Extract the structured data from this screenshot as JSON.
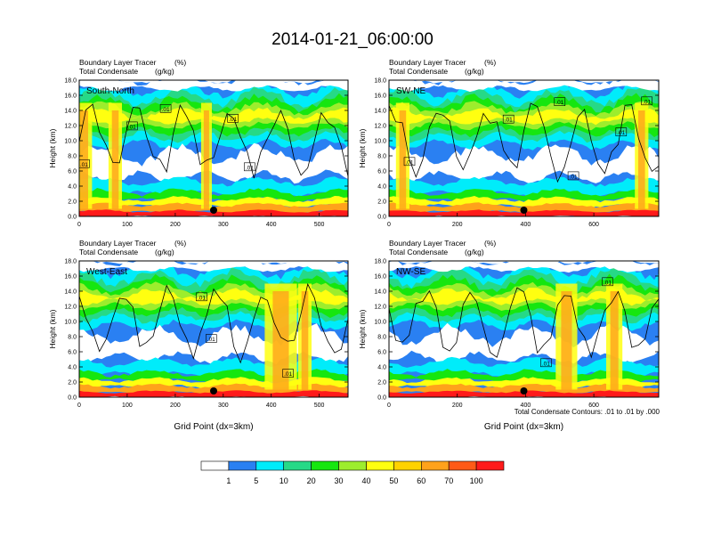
{
  "figure": {
    "title": "2014-01-21_06:00:00",
    "contour_note": "Total Condensate Contours: .01 to .01 by .000"
  },
  "colorbar": {
    "colors": [
      "#ffffff",
      "#2a80f2",
      "#00ecfa",
      "#26d987",
      "#16e60f",
      "#9ded2d",
      "#ffff10",
      "#ffd200",
      "#ffa21b",
      "#ff5a17",
      "#ff1a1a"
    ],
    "labels": [
      "1",
      "5",
      "10",
      "20",
      "30",
      "40",
      "50",
      "60",
      "70",
      "100"
    ]
  },
  "chart_data": [
    {
      "type": "heatmap",
      "panel": "top-left",
      "region_label": "South-North",
      "subtitle1": "Boundary Layer Tracer",
      "subtitle1_unit": "(%)",
      "subtitle2": "Total Condensate",
      "subtitle2_unit": "(g/kg)",
      "ylabel": "Height (km)",
      "xlabel": "",
      "xlim": [
        0,
        560
      ],
      "ylim": [
        0,
        18
      ],
      "xticks": [
        "0",
        "100",
        "200",
        "300",
        "400",
        "500"
      ],
      "xtick_values": [
        0,
        100,
        200,
        300,
        400,
        500
      ],
      "yticks": [
        "0.0",
        "2.0",
        "4.0",
        "6.0",
        "8.0",
        "10.0",
        "12.0",
        "14.0",
        "16.0",
        "18.0"
      ],
      "marker_x": 280,
      "contour_labels": [
        {
          "text": ".01",
          "x": 10,
          "y": 6.9
        },
        {
          "text": ".01",
          "x": 110,
          "y": 11.9
        },
        {
          "text": ".01",
          "x": 180,
          "y": 14.2
        },
        {
          "text": ".01",
          "x": 320,
          "y": 12.9
        },
        {
          "text": ".01",
          "x": 355,
          "y": 6.5
        }
      ]
    },
    {
      "type": "heatmap",
      "panel": "top-right",
      "region_label": "SW-NE",
      "subtitle1": "Boundary Layer Tracer",
      "subtitle1_unit": "(%)",
      "subtitle2": "Total Condensate",
      "subtitle2_unit": "(g/kg)",
      "ylabel": "Height (km)",
      "xlabel": "",
      "xlim": [
        0,
        790
      ],
      "ylim": [
        0,
        18
      ],
      "xticks": [
        "0",
        "200",
        "400",
        "600"
      ],
      "xtick_values": [
        0,
        200,
        400,
        600
      ],
      "yticks": [
        "0.0",
        "2.0",
        "4.0",
        "6.0",
        "8.0",
        "10.0",
        "12.0",
        "14.0",
        "16.0",
        "18.0"
      ],
      "marker_x": 395,
      "contour_labels": [
        {
          "text": ".01",
          "x": 60,
          "y": 7.2
        },
        {
          "text": ".01",
          "x": 350,
          "y": 12.8
        },
        {
          "text": ".01",
          "x": 500,
          "y": 15.1
        },
        {
          "text": ".01",
          "x": 540,
          "y": 5.3
        },
        {
          "text": ".01",
          "x": 680,
          "y": 11.1
        },
        {
          "text": ".01",
          "x": 755,
          "y": 15.2
        }
      ]
    },
    {
      "type": "heatmap",
      "panel": "bottom-left",
      "region_label": "West-East",
      "subtitle1": "Boundary Layer Tracer",
      "subtitle1_unit": "(%)",
      "subtitle2": "Total Condensate",
      "subtitle2_unit": "(g/kg)",
      "ylabel": "Height (km)",
      "xlabel": "Grid Point (dx=3km)",
      "xlim": [
        0,
        560
      ],
      "ylim": [
        0,
        18
      ],
      "xticks": [
        "0",
        "100",
        "200",
        "300",
        "400",
        "500"
      ],
      "xtick_values": [
        0,
        100,
        200,
        300,
        400,
        500
      ],
      "yticks": [
        "0.0",
        "2.0",
        "4.0",
        "6.0",
        "8.0",
        "10.0",
        "12.0",
        "14.0",
        "16.0",
        "18.0"
      ],
      "marker_x": 280,
      "contour_labels": [
        {
          "text": ".01",
          "x": 255,
          "y": 13.2
        },
        {
          "text": ".01",
          "x": 275,
          "y": 7.7
        },
        {
          "text": ".01",
          "x": 435,
          "y": 3.1
        }
      ]
    },
    {
      "type": "heatmap",
      "panel": "bottom-right",
      "region_label": "NW-SE",
      "subtitle1": "Boundary Layer Tracer",
      "subtitle1_unit": "(%)",
      "subtitle2": "Total Condensate",
      "subtitle2_unit": "(g/kg)",
      "ylabel": "Height (km)",
      "xlabel": "Grid Point (dx=3km)",
      "xlim": [
        0,
        790
      ],
      "ylim": [
        0,
        18
      ],
      "xticks": [
        "0",
        "200",
        "400",
        "600"
      ],
      "xtick_values": [
        0,
        200,
        400,
        600
      ],
      "yticks": [
        "0.0",
        "2.0",
        "4.0",
        "6.0",
        "8.0",
        "10.0",
        "12.0",
        "14.0",
        "16.0",
        "18.0"
      ],
      "marker_x": 395,
      "contour_labels": [
        {
          "text": ".01",
          "x": 460,
          "y": 4.5
        },
        {
          "text": ".01",
          "x": 640,
          "y": 15.2
        }
      ]
    }
  ]
}
